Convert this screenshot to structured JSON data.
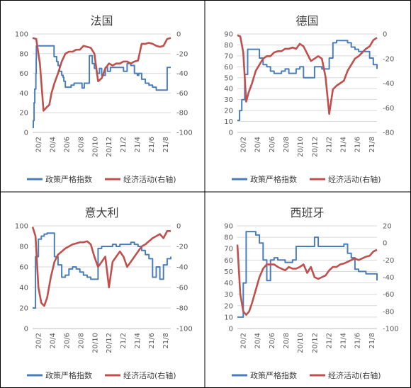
{
  "colors": {
    "policy": "#4a7ebb",
    "activity": "#c0504d",
    "grid": "#d9d9d9",
    "border": "#000000"
  },
  "chart_data": [
    {
      "type": "line",
      "title": "法国",
      "x_ticks": [
        "20/2",
        "20/4",
        "20/6",
        "20/8",
        "20/10",
        "20/12",
        "21/2",
        "21/4",
        "21/6",
        "21/8"
      ],
      "y_left": {
        "min": 0,
        "max": 100,
        "step": 20,
        "ticks": [
          "0",
          "20",
          "40",
          "60",
          "80",
          "100"
        ]
      },
      "y_right": {
        "min": -100,
        "max": 0,
        "step": 20,
        "ticks": [
          "-100",
          "-80",
          "-60",
          "-40",
          "-20",
          "0"
        ]
      },
      "legend": [
        "政策严格指数",
        "经济活动(右轴)"
      ],
      "series": [
        {
          "name": "政策严格指数",
          "axis": "left",
          "x": [
            0,
            0.03,
            0.06,
            0.1,
            0.2,
            0.3,
            0.3,
            0.33,
            0.38,
            0.4,
            0.45,
            0.5,
            0.52,
            0.55,
            0.6,
            0.65,
            0.7,
            0.8,
            0.9,
            0.9,
            1.2,
            1.5,
            1.55,
            1.7,
            1.8,
            1.9,
            2,
            2.3,
            2.6,
            2.8,
            2.95,
            3.05,
            3.3,
            3.5,
            3.7,
            4,
            4.2,
            4.3,
            4.5,
            4.7,
            4.9,
            5,
            5.2,
            5.3,
            5.4,
            5.5,
            5.6,
            5.7,
            5.8,
            6,
            6.2,
            6.4,
            6.6,
            6.8,
            7,
            7.1,
            7.2,
            7.4,
            7.6,
            7.8,
            8,
            8.1,
            8.2,
            8.5,
            8.8,
            9.2,
            9.5,
            10,
            10.3,
            10.5,
            10.7,
            11,
            11.5,
            12.5,
            13,
            13.5,
            14,
            14.4,
            14.6,
            15,
            15.5,
            16,
            16.5,
            17,
            17.5,
            18,
            18.5,
            19
          ],
          "values": [
            5,
            5,
            5,
            12,
            30,
            44,
            44,
            44,
            44,
            44,
            60,
            75,
            88,
            88,
            88,
            88,
            88,
            88,
            88,
            88,
            88,
            88,
            88,
            88,
            88,
            88,
            88,
            88,
            88,
            88,
            77,
            77,
            72,
            68,
            62,
            58,
            56,
            52,
            46,
            46,
            46,
            46,
            46,
            48,
            48,
            48,
            48,
            50,
            50,
            50,
            50,
            50,
            50,
            45,
            45,
            50,
            50,
            50,
            50,
            78,
            78,
            78,
            70,
            65,
            60,
            65,
            58,
            66,
            62,
            62,
            66,
            66,
            66,
            62,
            70,
            68,
            60,
            58,
            60,
            54,
            50,
            48,
            46,
            43,
            43,
            43,
            66,
            66
          ]
        },
        {
          "name": "经济活动(右轴)",
          "axis": "right",
          "x": [
            0,
            0.5,
            1,
            1.5,
            2,
            2.3,
            2.6,
            3,
            3.5,
            4,
            4.5,
            5,
            5.5,
            6,
            6.5,
            7,
            7.5,
            8,
            8.5,
            9,
            9.5,
            10,
            10.5,
            11,
            11.5,
            12,
            12.5,
            13,
            13.5,
            14,
            14.5,
            15,
            15.5,
            16,
            16.5,
            17,
            17.5,
            18,
            18.5,
            19
          ],
          "values": [
            -4,
            -5,
            -30,
            -78,
            -74,
            -72,
            -60,
            -50,
            -40,
            -28,
            -20,
            -18,
            -18,
            -16,
            -16,
            -12,
            -13,
            -14,
            -20,
            -48,
            -45,
            -35,
            -30,
            -32,
            -30,
            -30,
            -28,
            -28,
            -30,
            -28,
            -27,
            -10,
            -10,
            -9,
            -10,
            -12,
            -13,
            -12,
            -5,
            -4
          ]
        }
      ]
    },
    {
      "type": "line",
      "title": "德国",
      "x_ticks": [
        "20/2",
        "20/4",
        "20/6",
        "20/8",
        "20/10",
        "20/12",
        "21/2",
        "21/4",
        "21/6",
        "21/8"
      ],
      "y_left": {
        "min": 0,
        "max": 90,
        "step": 10,
        "ticks": [
          "0",
          "10",
          "20",
          "30",
          "40",
          "50",
          "60",
          "70",
          "80",
          "90"
        ]
      },
      "y_right": {
        "min": -80,
        "max": 0,
        "step": 20,
        "ticks": [
          "-80",
          "-60",
          "-40",
          "-20",
          "0"
        ]
      },
      "legend": [
        "政策严格指数",
        "经济活动(右轴)"
      ],
      "series": [
        {
          "name": "政策严格指数",
          "axis": "left",
          "x": [
            0,
            0.3,
            0.6,
            1,
            1.4,
            1.8,
            2,
            2.5,
            3,
            3.5,
            4,
            4.5,
            5,
            5.5,
            6,
            6.5,
            7,
            7.5,
            8,
            8.5,
            9,
            9.5,
            10,
            10.5,
            11,
            11.5,
            12,
            12.5,
            13,
            13.5,
            14,
            14.5,
            15,
            15.5,
            16,
            16.5,
            17,
            17.5,
            18,
            18.5,
            19
          ],
          "values": [
            11,
            20,
            30,
            53,
            76,
            76,
            76,
            76,
            68,
            62,
            60,
            56,
            54,
            54,
            56,
            58,
            54,
            54,
            58,
            60,
            50,
            50,
            50,
            60,
            60,
            58,
            58,
            68,
            82,
            84,
            84,
            84,
            82,
            78,
            76,
            74,
            74,
            74,
            68,
            62,
            58
          ]
        },
        {
          "name": "经济活动(右轴)",
          "axis": "right",
          "x": [
            0,
            0.4,
            0.8,
            1.2,
            1.5,
            2,
            2.5,
            3,
            3.5,
            4,
            4.5,
            5,
            5.5,
            6,
            6.5,
            7,
            7.5,
            8,
            8.5,
            9,
            9.5,
            10,
            10.5,
            11,
            11.5,
            12,
            12.5,
            13,
            13.5,
            14,
            14.5,
            15,
            15.5,
            16,
            16.5,
            17,
            17.5,
            18,
            18.5,
            19
          ],
          "values": [
            -1,
            -2,
            -15,
            -55,
            -48,
            -40,
            -30,
            -25,
            -20,
            -18,
            -18,
            -15,
            -14,
            -14,
            -12,
            -12,
            -11,
            -12,
            -8,
            -10,
            -16,
            -22,
            -20,
            -18,
            -20,
            -35,
            -65,
            -45,
            -42,
            -40,
            -38,
            -30,
            -25,
            -20,
            -18,
            -15,
            -12,
            -10,
            -5,
            -3
          ]
        }
      ]
    },
    {
      "type": "line",
      "title": "意大利",
      "x_ticks": [
        "20/2",
        "20/4",
        "20/6",
        "20/8",
        "20/10",
        "20/12",
        "21/2",
        "21/4",
        "21/6",
        "21/8"
      ],
      "y_left": {
        "min": 0,
        "max": 100,
        "step": 20,
        "ticks": [
          "0",
          "20",
          "40",
          "60",
          "80",
          "100"
        ]
      },
      "y_right": {
        "min": -100,
        "max": 0,
        "step": 20,
        "ticks": [
          "-100",
          "-80",
          "-60",
          "-40",
          "-20",
          "0"
        ]
      },
      "legend": [
        "政策严格指数",
        "经济活动(右轴)"
      ],
      "series": [
        {
          "name": "政策严格指数",
          "axis": "left",
          "x": [
            0,
            0.4,
            0.8,
            1.2,
            1.6,
            2,
            2.5,
            3,
            3.5,
            4,
            4.5,
            5,
            5.5,
            6,
            6.5,
            7,
            7.5,
            8,
            8.5,
            9,
            9.5,
            10,
            10.5,
            11,
            11.5,
            12,
            12.5,
            13,
            13.5,
            14,
            14.5,
            15,
            15.5,
            16,
            16.5,
            17,
            17.5,
            18,
            18.5,
            19
          ],
          "values": [
            20,
            70,
            87,
            90,
            92,
            93,
            93,
            70,
            62,
            50,
            52,
            58,
            60,
            58,
            55,
            52,
            50,
            48,
            48,
            78,
            80,
            80,
            80,
            82,
            80,
            82,
            82,
            82,
            84,
            82,
            80,
            76,
            72,
            68,
            50,
            60,
            48,
            62,
            68,
            70
          ]
        },
        {
          "name": "经济活动(右轴)",
          "axis": "right",
          "x": [
            0,
            0.4,
            0.8,
            1.2,
            1.6,
            2,
            2.5,
            3,
            3.5,
            4,
            4.5,
            5,
            5.5,
            6,
            6.5,
            7,
            7.5,
            8,
            8.5,
            9,
            9.5,
            10,
            10.5,
            11,
            11.5,
            12,
            12.5,
            13,
            13.5,
            14,
            14.5,
            15,
            15.5,
            16,
            16.5,
            17,
            17.5,
            18,
            18.5,
            19
          ],
          "values": [
            -1,
            -10,
            -60,
            -75,
            -78,
            -70,
            -50,
            -35,
            -28,
            -25,
            -22,
            -20,
            -18,
            -17,
            -16,
            -16,
            -15,
            -18,
            -30,
            -40,
            -35,
            -30,
            -60,
            -35,
            -30,
            -25,
            -30,
            -40,
            -35,
            -30,
            -25,
            -20,
            -18,
            -15,
            -12,
            -10,
            -8,
            -12,
            -5,
            -5
          ]
        }
      ]
    },
    {
      "type": "line",
      "title": "西班牙",
      "x_ticks": [
        "20/2",
        "20/4",
        "20/6",
        "20/8",
        "20/10",
        "20/12",
        "21/2",
        "21/4",
        "21/6",
        "21/8"
      ],
      "y_left": {
        "min": 0,
        "max": 90,
        "step": 10,
        "ticks": [
          "0",
          "10",
          "20",
          "30",
          "40",
          "50",
          "60",
          "70",
          "80",
          "90"
        ]
      },
      "y_right": {
        "min": -100,
        "max": 20,
        "step": 20,
        "ticks": [
          "-100",
          "-80",
          "-60",
          "-40",
          "-20",
          "0",
          "20"
        ]
      },
      "legend": [
        "政策严格指数",
        "经济活动(右轴)"
      ],
      "series": [
        {
          "name": "政策严格指数",
          "axis": "left",
          "x": [
            0,
            0.4,
            0.8,
            1.2,
            1.6,
            2,
            2.5,
            3,
            3.5,
            4,
            4.5,
            5,
            5.5,
            6,
            6.5,
            7,
            7.5,
            8,
            8.5,
            9,
            9.5,
            10,
            10.5,
            11,
            11.5,
            12,
            12.5,
            13,
            13.5,
            14,
            14.5,
            15,
            15.5,
            16,
            16.5,
            17,
            17.5,
            18,
            18.5,
            19
          ],
          "values": [
            10,
            10,
            40,
            85,
            85,
            85,
            82,
            75,
            60,
            42,
            60,
            62,
            60,
            60,
            58,
            58,
            60,
            72,
            72,
            72,
            72,
            72,
            80,
            72,
            72,
            72,
            72,
            72,
            72,
            72,
            74,
            66,
            62,
            52,
            50,
            50,
            48,
            48,
            48,
            42
          ]
        },
        {
          "name": "经济活动(右轴)",
          "axis": "right",
          "x": [
            0,
            0.4,
            0.8,
            1.2,
            1.6,
            2,
            2.5,
            3,
            3.5,
            4,
            4.5,
            5,
            5.5,
            6,
            6.5,
            7,
            7.5,
            8,
            8.5,
            9,
            9.5,
            10,
            10.5,
            11,
            11.5,
            12,
            12.5,
            13,
            13.5,
            14,
            14.5,
            15,
            15.5,
            16,
            16.5,
            17,
            17.5,
            18,
            18.5,
            19
          ],
          "values": [
            -2,
            -60,
            -80,
            -84,
            -80,
            -70,
            -55,
            -40,
            -30,
            -25,
            -25,
            -25,
            -28,
            -30,
            -32,
            -28,
            -30,
            -30,
            -28,
            -25,
            -35,
            -28,
            -40,
            -42,
            -40,
            -38,
            -32,
            -28,
            -28,
            -25,
            -24,
            -22,
            -20,
            -18,
            -20,
            -18,
            -16,
            -15,
            -10,
            -8
          ]
        }
      ]
    }
  ]
}
